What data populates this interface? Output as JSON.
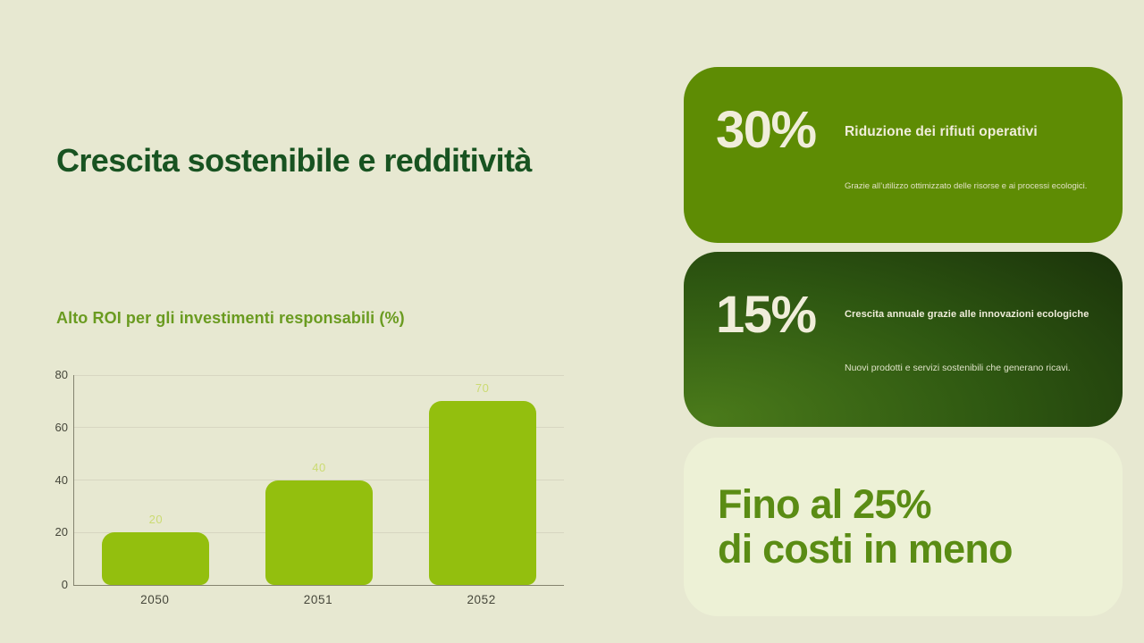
{
  "slide": {
    "title": "Crescita sostenibile e redditività",
    "background": "#e7e8d1"
  },
  "chart_data": {
    "type": "bar",
    "title": "Alto ROI per gli investimenti responsabili (%)",
    "categories": [
      "2050",
      "2051",
      "2052"
    ],
    "values": [
      20,
      40,
      70
    ],
    "xlabel": "",
    "ylabel": "",
    "ylim": [
      0,
      80
    ],
    "yticks": [
      0,
      20,
      40,
      60,
      80
    ],
    "grid": true,
    "legend": false,
    "bar_color": "#93bf0e",
    "value_label_color": "#cbdb72",
    "axis_color": "#84836f",
    "tick_label_color": "#45463a"
  },
  "stat_cards": [
    {
      "stat": "30%",
      "heading": "Riduzione dei rifiuti operativi",
      "body": "Grazie all’utilizzo ottimizzato delle risorse e ai processi ecologici.",
      "background": "#5e8c04"
    },
    {
      "stat": "15%",
      "heading": "Crescita annuale grazie alle innovazioni ecologiche",
      "body": "Nuovi prodotti e servizi sostenibili che generano ricavi.",
      "background_from": "#4a7a1a",
      "background_mid": "#2e5711",
      "background_to": "#132508"
    }
  ],
  "highlight_card": {
    "line1": "Fino al 25%",
    "line2": "di costi in meno",
    "background": "#edf1d6",
    "text_color": "#5a8c14"
  }
}
